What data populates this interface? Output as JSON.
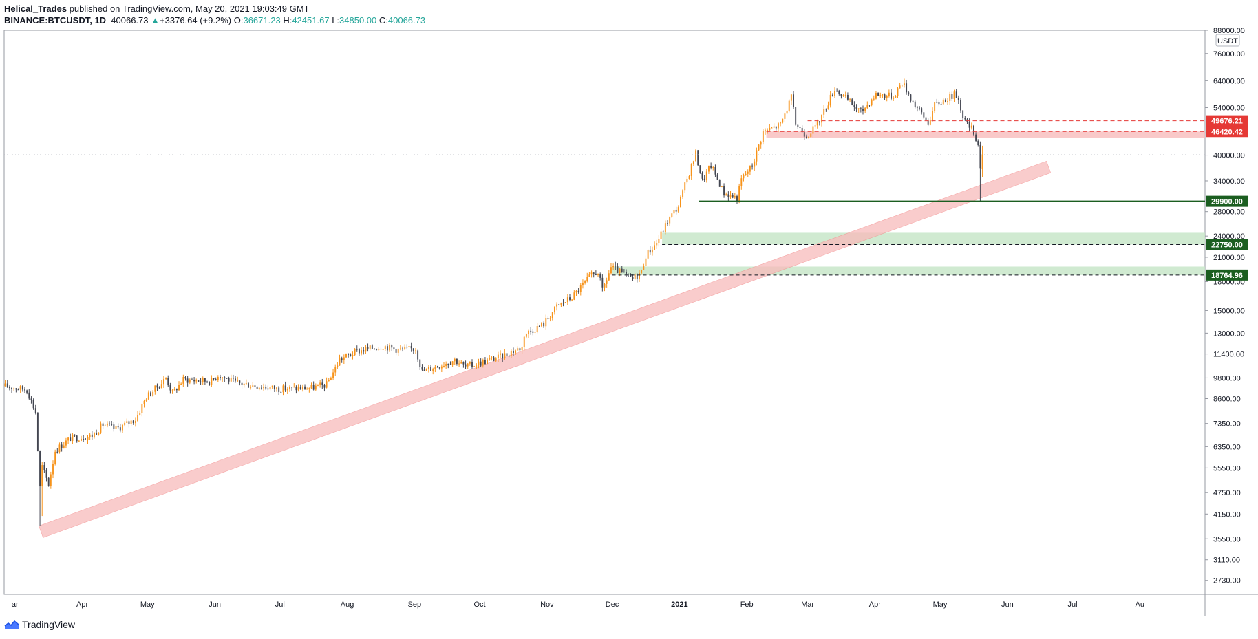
{
  "header": {
    "author": "Helical_Trades",
    "published_text": "published on TradingView.com, May 20, 2021 19:03:49 GMT",
    "symbol": "BINANCE:BTCUSDT, 1D",
    "last_price": "40066.73",
    "change_arrow": "▲",
    "change": "+3376.64 (+9.2%)",
    "open_label": "O:",
    "open": "36671.23",
    "high_label": "H:",
    "high": "42451.67",
    "low_label": "L:",
    "low": "34850.00",
    "close_label": "C:",
    "close": "40066.73"
  },
  "footer": {
    "brand": "TradingView"
  },
  "colors": {
    "bull": "#f7931a",
    "bear": "#434651",
    "support": "#1b5e20",
    "support_zone": "#c8e6c9",
    "resistance": "#e53935",
    "resistance_zone": "#f8bbbb",
    "trend_band": "#f8bbbb",
    "grid": "#e0e3eb"
  },
  "chart_data": {
    "type": "candlestick",
    "symbol": "BINANCE:BTCUSDT",
    "interval": "1D",
    "currency": "USDT",
    "y_scale": "log",
    "ylim": [
      2500,
      88000
    ],
    "x_range": [
      "2020-02-25",
      "2021-08-31"
    ],
    "y_ticks": [
      "88000.00",
      "76000.00",
      "64000.00",
      "54000.00",
      "46000.00",
      "40000.00",
      "34000.00",
      "28000.00",
      "24000.00",
      "21000.00",
      "18000.00",
      "15000.00",
      "13000.00",
      "11400.00",
      "9800.00",
      "8600.00",
      "7350.00",
      "6350.00",
      "5550.00",
      "4750.00",
      "4150.00",
      "3550.00",
      "3110.00",
      "2730.00"
    ],
    "x_ticks": [
      {
        "label": "ar",
        "date": "2020-03-01"
      },
      {
        "label": "Apr",
        "date": "2020-04-01"
      },
      {
        "label": "May",
        "date": "2020-05-01"
      },
      {
        "label": "Jun",
        "date": "2020-06-01"
      },
      {
        "label": "Jul",
        "date": "2020-07-01"
      },
      {
        "label": "Aug",
        "date": "2020-08-01"
      },
      {
        "label": "Sep",
        "date": "2020-09-01"
      },
      {
        "label": "Oct",
        "date": "2020-10-01"
      },
      {
        "label": "Nov",
        "date": "2020-11-01"
      },
      {
        "label": "Dec",
        "date": "2020-12-01"
      },
      {
        "label": "2021",
        "date": "2021-01-01"
      },
      {
        "label": "Feb",
        "date": "2021-02-01"
      },
      {
        "label": "Mar",
        "date": "2021-03-01"
      },
      {
        "label": "Apr",
        "date": "2021-04-01"
      },
      {
        "label": "May",
        "date": "2021-05-01"
      },
      {
        "label": "Jun",
        "date": "2021-06-01"
      },
      {
        "label": "Jul",
        "date": "2021-07-01"
      },
      {
        "label": "Au",
        "date": "2021-08-01"
      }
    ],
    "price_path": [
      [
        "2020-02-25",
        9300
      ],
      [
        "2020-03-06",
        9100
      ],
      [
        "2020-03-10",
        7900
      ],
      [
        "2020-03-12",
        4900
      ],
      [
        "2020-03-13",
        5600
      ],
      [
        "2020-03-16",
        5000
      ],
      [
        "2020-03-19",
        6200
      ],
      [
        "2020-03-26",
        6700
      ],
      [
        "2020-04-05",
        6800
      ],
      [
        "2020-04-10",
        7300
      ],
      [
        "2020-04-16",
        7100
      ],
      [
        "2020-04-25",
        7550
      ],
      [
        "2020-04-30",
        8700
      ],
      [
        "2020-05-07",
        9500
      ],
      [
        "2020-05-09",
        9800
      ],
      [
        "2020-05-12",
        8900
      ],
      [
        "2020-05-17",
        9700
      ],
      [
        "2020-05-30",
        9600
      ],
      [
        "2020-06-02",
        10000
      ],
      [
        "2020-06-10",
        9500
      ],
      [
        "2020-06-30",
        9150
      ],
      [
        "2020-07-15",
        9200
      ],
      [
        "2020-07-22",
        9400
      ],
      [
        "2020-07-28",
        11000
      ],
      [
        "2020-08-05",
        11600
      ],
      [
        "2020-08-17",
        12000
      ],
      [
        "2020-08-24",
        11700
      ],
      [
        "2020-09-01",
        11800
      ],
      [
        "2020-09-04",
        10200
      ],
      [
        "2020-09-19",
        11000
      ],
      [
        "2020-09-24",
        10500
      ],
      [
        "2020-10-10",
        11200
      ],
      [
        "2020-10-20",
        11900
      ],
      [
        "2020-10-21",
        12900
      ],
      [
        "2020-10-30",
        13800
      ],
      [
        "2020-11-05",
        15400
      ],
      [
        "2020-11-12",
        16300
      ],
      [
        "2020-11-20",
        18500
      ],
      [
        "2020-11-24",
        19200
      ],
      [
        "2020-11-26",
        17000
      ],
      [
        "2020-11-30",
        19700
      ],
      [
        "2020-12-10",
        18300
      ],
      [
        "2020-12-14",
        19200
      ],
      [
        "2020-12-16",
        21300
      ],
      [
        "2020-12-21",
        23000
      ],
      [
        "2020-12-26",
        26400
      ],
      [
        "2020-12-31",
        29000
      ],
      [
        "2021-01-03",
        33000
      ],
      [
        "2021-01-08",
        40500
      ],
      [
        "2021-01-11",
        34000
      ],
      [
        "2021-01-15",
        37500
      ],
      [
        "2021-01-21",
        31500
      ],
      [
        "2021-01-27",
        30500
      ],
      [
        "2021-01-29",
        34300
      ],
      [
        "2021-02-03",
        37500
      ],
      [
        "2021-02-08",
        46300
      ],
      [
        "2021-02-16",
        48500
      ],
      [
        "2021-02-21",
        57500
      ],
      [
        "2021-02-23",
        48800
      ],
      [
        "2021-02-28",
        45300
      ],
      [
        "2021-03-05",
        48500
      ],
      [
        "2021-03-13",
        61000
      ],
      [
        "2021-03-25",
        52500
      ],
      [
        "2021-04-01",
        58800
      ],
      [
        "2021-04-09",
        58000
      ],
      [
        "2021-04-13",
        63500
      ],
      [
        "2021-04-18",
        56000
      ],
      [
        "2021-04-25",
        49000
      ],
      [
        "2021-04-28",
        54800
      ],
      [
        "2021-05-03",
        57000
      ],
      [
        "2021-05-08",
        58800
      ],
      [
        "2021-05-12",
        49500
      ],
      [
        "2021-05-16",
        46400
      ],
      [
        "2021-05-18",
        42800
      ],
      [
        "2021-05-19",
        37000
      ],
      [
        "2021-05-20",
        40066.73
      ]
    ],
    "annotations": {
      "resistance_lines": [
        {
          "price": 49676.21,
          "label": "49676.21",
          "from": "2021-03-01"
        },
        {
          "price": 46420.42,
          "label": "46420.42",
          "from": "2021-02-10"
        }
      ],
      "resistance_zone": {
        "from_price": 44700,
        "to_price": 46420.42,
        "from": "2021-02-10"
      },
      "support_lines": [
        {
          "price": 29900.0,
          "label": "29900.00",
          "from": "2021-01-10",
          "style": "solid"
        },
        {
          "price": 22750.0,
          "label": "22750.00",
          "from": "2020-12-24",
          "style": "dashed"
        },
        {
          "price": 18764.96,
          "label": "18764.96",
          "from": "2020-12-01",
          "style": "dashed"
        }
      ],
      "support_zones": [
        {
          "from_price": 22750,
          "to_price": 24500,
          "from": "2020-12-24"
        },
        {
          "from_price": 18764.96,
          "to_price": 19800,
          "from": "2020-12-01"
        }
      ],
      "trend_band": {
        "start": [
          "2020-03-12",
          3850
        ],
        "end": [
          "2021-06-19",
          38500
        ],
        "width_pct": 0.11
      },
      "current_price_line": 40066.73
    }
  }
}
